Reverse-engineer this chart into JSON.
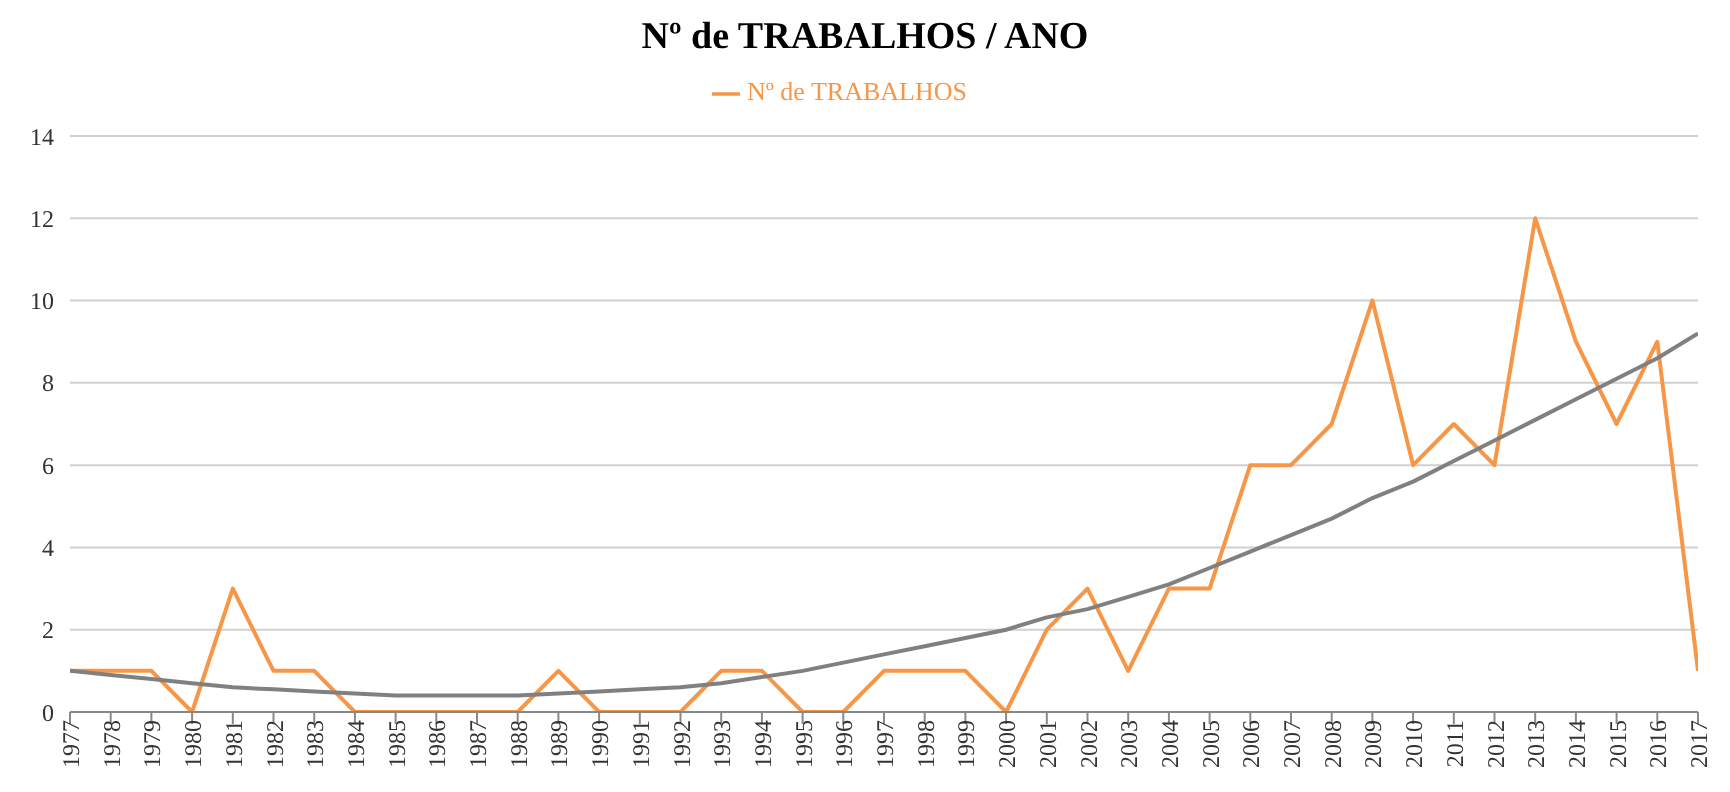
{
  "chart_data": {
    "type": "line",
    "title": "Nº de TRABALHOS / ANO",
    "categories": [
      "1977",
      "1978",
      "1979",
      "1980",
      "1981",
      "1982",
      "1983",
      "1984",
      "1985",
      "1986",
      "1987",
      "1988",
      "1989",
      "1990",
      "1991",
      "1992",
      "1993",
      "1994",
      "1995",
      "1996",
      "1997",
      "1998",
      "1999",
      "2000",
      "2001",
      "2002",
      "2003",
      "2004",
      "2005",
      "2006",
      "2007",
      "2008",
      "2009",
      "2010",
      "2011",
      "2012",
      "2013",
      "2014",
      "2015",
      "2016",
      "2017"
    ],
    "series": [
      {
        "name": "Nº de TRABALHOS",
        "color": "#f79646",
        "values": [
          1,
          1,
          1,
          0,
          3,
          1,
          1,
          0,
          0,
          0,
          0,
          0,
          1,
          0,
          0,
          0,
          1,
          1,
          0,
          0,
          1,
          1,
          1,
          0,
          2,
          3,
          1,
          3,
          3,
          6,
          6,
          7,
          10,
          6,
          7,
          6,
          12,
          9,
          7,
          9,
          1
        ]
      },
      {
        "type": "line",
        "color": "#808080",
        "values": [
          1.0,
          0.9,
          0.8,
          0.7,
          0.6,
          0.55,
          0.5,
          0.45,
          0.4,
          0.4,
          0.4,
          0.4,
          0.45,
          0.5,
          0.55,
          0.6,
          0.7,
          0.85,
          1.0,
          1.2,
          1.4,
          1.6,
          1.8,
          2.0,
          2.3,
          2.5,
          2.8,
          3.1,
          3.5,
          3.9,
          4.3,
          4.7,
          5.2,
          5.6,
          6.1,
          6.6,
          7.1,
          7.6,
          8.1,
          8.6,
          9.2
        ]
      }
    ],
    "ylim": [
      0,
      14
    ],
    "yticks": [
      0,
      2,
      4,
      6,
      8,
      10,
      12,
      14
    ],
    "grid": "y",
    "legend": "top",
    "marker": "none",
    "line_style": "solid"
  }
}
